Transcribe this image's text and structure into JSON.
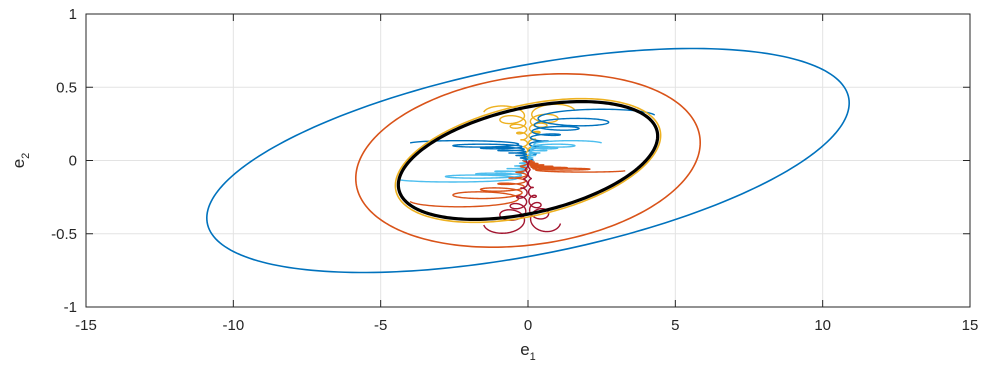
{
  "chart_data": {
    "type": "line",
    "title": "",
    "xlabel": {
      "base": "e",
      "sub": "1"
    },
    "ylabel": {
      "base": "e",
      "sub": "2"
    },
    "xlim": [
      -15,
      15
    ],
    "ylim": [
      -1,
      1
    ],
    "xticks": [
      -15,
      -10,
      -5,
      0,
      5,
      10,
      15
    ],
    "yticks": [
      -1,
      -0.5,
      0,
      0.5,
      1
    ],
    "xtick_labels": [
      "-15",
      "-10",
      "-5",
      "0",
      "5",
      "10",
      "15"
    ],
    "ytick_labels": [
      "-1",
      "-0.5",
      "0",
      "0.5",
      "1"
    ],
    "grid": true,
    "box": true,
    "ellipses": [
      {
        "color": "#0072BD",
        "rightmost": [
          10.9,
          0.39
        ],
        "topmost": [
          5.1,
          0.84
        ],
        "line": "thin"
      },
      {
        "color": "#D95319",
        "rightmost": [
          5.8,
          0.05
        ],
        "topmost": [
          1.2,
          0.6
        ],
        "line": "thin"
      },
      {
        "color": "#EDB120",
        "rightmost": [
          4.5,
          0.18
        ],
        "topmost": [
          1.7,
          0.45
        ],
        "line": "thin"
      },
      {
        "color": "#000000",
        "rightmost": [
          4.4,
          0.17
        ],
        "topmost": [
          1.7,
          0.43
        ],
        "line": "thick"
      }
    ],
    "trajectories": [
      {
        "color": "#EDB120",
        "x0": [
          -1.5,
          0.33
        ],
        "x0b": [
          1.6,
          0.34
        ],
        "band": "funnel-top"
      },
      {
        "color": "#0072BD",
        "x0": [
          -4.0,
          0.12
        ],
        "x0b": [
          4.3,
          0.31
        ],
        "band": "upper"
      },
      {
        "color": "#4DBEEE",
        "x0": [
          -4.4,
          -0.13
        ],
        "x0b": [
          2.5,
          0.12
        ],
        "band": "mid"
      },
      {
        "color": "#D95319",
        "x0": [
          -4.0,
          -0.28
        ],
        "x0b": [
          3.3,
          -0.07
        ],
        "band": "lower"
      },
      {
        "color": "#A2142F",
        "x0": [
          -1.5,
          -0.44
        ],
        "x0b": [
          1.1,
          -0.43
        ],
        "band": "funnel-bottom"
      }
    ]
  }
}
